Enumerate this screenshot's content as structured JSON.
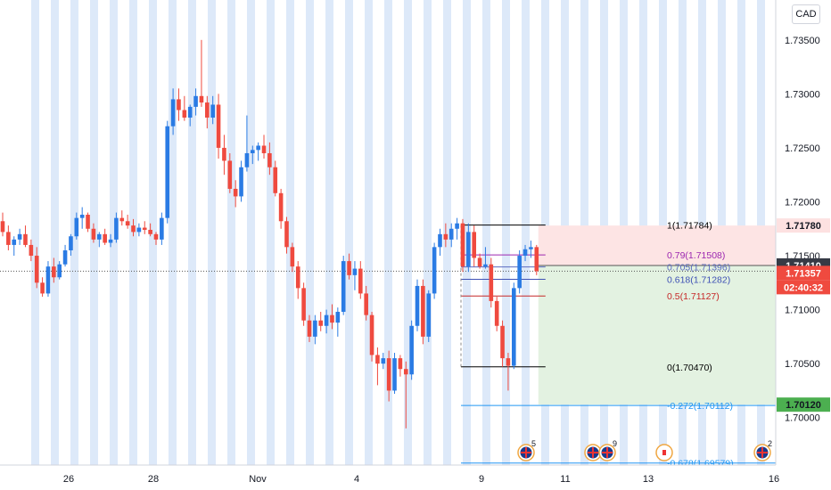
{
  "currency": "CAD",
  "colors": {
    "up": "#2a7be4",
    "down": "#ef4a3f",
    "session_band": "#dde9f9",
    "fib_1": "#000000",
    "fib_079": "#9c27b0",
    "fib_0705": "#5c6bc0",
    "fib_0618": "#3f51b5",
    "fib_05": "#c62828",
    "fib_0": "#000000",
    "fib_ext": "#2196f3",
    "stop_zone": "#fde4e4",
    "target_zone": "#e3f2e1",
    "tag_red": "#ef4a3f",
    "tag_green": "#4caf50",
    "tag_dark": "#363a45",
    "tag_pink": "#fde1e1"
  },
  "chart_data": {
    "type": "candlestick",
    "ylim": [
      1.6956,
      1.7387
    ],
    "y_ticks": [
      {
        "value": 1.7,
        "label": "1.70000"
      },
      {
        "value": 1.705,
        "label": "1.70500"
      },
      {
        "value": 1.71,
        "label": "1.71000"
      },
      {
        "value": 1.715,
        "label": "1.71500"
      },
      {
        "value": 1.72,
        "label": "1.72000"
      },
      {
        "value": 1.725,
        "label": "1.72500"
      },
      {
        "value": 1.73,
        "label": "1.73000"
      },
      {
        "value": 1.735,
        "label": "1.73500"
      }
    ],
    "x_ticks": [
      "26",
      "28",
      "Nov",
      "4",
      "9",
      "11",
      "13",
      "16"
    ],
    "candles": [
      [
        1.7182,
        1.719,
        1.7168,
        1.7172
      ],
      [
        1.7172,
        1.7178,
        1.7155,
        1.716
      ],
      [
        1.716,
        1.7168,
        1.715,
        1.7165
      ],
      [
        1.7165,
        1.7175,
        1.716,
        1.717
      ],
      [
        1.717,
        1.7178,
        1.7158,
        1.716
      ],
      [
        1.716,
        1.7165,
        1.7145,
        1.715
      ],
      [
        1.715,
        1.7158,
        1.712,
        1.7125
      ],
      [
        1.7125,
        1.713,
        1.7112,
        1.7115
      ],
      [
        1.7115,
        1.7145,
        1.7112,
        1.714
      ],
      [
        1.714,
        1.7148,
        1.7125,
        1.713
      ],
      [
        1.713,
        1.7145,
        1.7128,
        1.7142
      ],
      [
        1.7142,
        1.716,
        1.714,
        1.7155
      ],
      [
        1.7155,
        1.717,
        1.715,
        1.7168
      ],
      [
        1.7168,
        1.719,
        1.7165,
        1.7185
      ],
      [
        1.7185,
        1.7195,
        1.7175,
        1.7188
      ],
      [
        1.7188,
        1.719,
        1.7172,
        1.7175
      ],
      [
        1.7175,
        1.718,
        1.7162,
        1.7165
      ],
      [
        1.7165,
        1.7172,
        1.7158,
        1.717
      ],
      [
        1.717,
        1.7175,
        1.716,
        1.7162
      ],
      [
        1.7162,
        1.717,
        1.7158,
        1.7165
      ],
      [
        1.7165,
        1.719,
        1.7162,
        1.7185
      ],
      [
        1.7185,
        1.7192,
        1.7178,
        1.7182
      ],
      [
        1.7182,
        1.7188,
        1.7175,
        1.7178
      ],
      [
        1.7178,
        1.7184,
        1.7168,
        1.7172
      ],
      [
        1.7172,
        1.718,
        1.7168,
        1.7176
      ],
      [
        1.7176,
        1.7182,
        1.717,
        1.7174
      ],
      [
        1.7174,
        1.718,
        1.7168,
        1.717
      ],
      [
        1.717,
        1.7172,
        1.716,
        1.7165
      ],
      [
        1.7165,
        1.719,
        1.716,
        1.7185
      ],
      [
        1.7185,
        1.7275,
        1.718,
        1.727
      ],
      [
        1.727,
        1.7305,
        1.7262,
        1.7295
      ],
      [
        1.7295,
        1.7305,
        1.7275,
        1.7285
      ],
      [
        1.7285,
        1.7298,
        1.7275,
        1.7278
      ],
      [
        1.7278,
        1.729,
        1.727,
        1.7288
      ],
      [
        1.7288,
        1.7305,
        1.728,
        1.7298
      ],
      [
        1.7298,
        1.735,
        1.7288,
        1.7292
      ],
      [
        1.7292,
        1.7298,
        1.7268,
        1.7278
      ],
      [
        1.7278,
        1.7298,
        1.7272,
        1.729
      ],
      [
        1.729,
        1.73,
        1.724,
        1.725
      ],
      [
        1.725,
        1.7262,
        1.7225,
        1.7238
      ],
      [
        1.7238,
        1.7245,
        1.7208,
        1.7212
      ],
      [
        1.7212,
        1.722,
        1.7195,
        1.7205
      ],
      [
        1.7205,
        1.7238,
        1.72,
        1.7232
      ],
      [
        1.7232,
        1.728,
        1.7228,
        1.7245
      ],
      [
        1.7245,
        1.7252,
        1.7235,
        1.7248
      ],
      [
        1.7248,
        1.7255,
        1.7238,
        1.7252
      ],
      [
        1.7252,
        1.7262,
        1.724,
        1.7245
      ],
      [
        1.7245,
        1.7255,
        1.7225,
        1.7232
      ],
      [
        1.7232,
        1.7238,
        1.7205,
        1.7208
      ],
      [
        1.7208,
        1.7212,
        1.7175,
        1.7182
      ],
      [
        1.7182,
        1.7186,
        1.7152,
        1.7158
      ],
      [
        1.7158,
        1.7162,
        1.7135,
        1.714
      ],
      [
        1.714,
        1.7145,
        1.711,
        1.712
      ],
      [
        1.712,
        1.7125,
        1.7085,
        1.709
      ],
      [
        1.709,
        1.7095,
        1.707,
        1.7075
      ],
      [
        1.7075,
        1.7095,
        1.7068,
        1.709
      ],
      [
        1.709,
        1.7098,
        1.708,
        1.7085
      ],
      [
        1.7085,
        1.71,
        1.7078,
        1.7095
      ],
      [
        1.7095,
        1.7105,
        1.7082,
        1.7088
      ],
      [
        1.7088,
        1.7102,
        1.7075,
        1.7098
      ],
      [
        1.7098,
        1.715,
        1.7095,
        1.7145
      ],
      [
        1.7145,
        1.7152,
        1.7128,
        1.7132
      ],
      [
        1.7132,
        1.7145,
        1.7118,
        1.7138
      ],
      [
        1.7138,
        1.7145,
        1.711,
        1.7115
      ],
      [
        1.7115,
        1.7122,
        1.709,
        1.7095
      ],
      [
        1.7095,
        1.7098,
        1.7052,
        1.7058
      ],
      [
        1.7058,
        1.7065,
        1.703,
        1.705
      ],
      [
        1.705,
        1.706,
        1.7045,
        1.7055
      ],
      [
        1.7055,
        1.7062,
        1.7015,
        1.7025
      ],
      [
        1.7025,
        1.706,
        1.7022,
        1.7055
      ],
      [
        1.7055,
        1.7058,
        1.7038,
        1.7045
      ],
      [
        1.7045,
        1.7052,
        1.699,
        1.704
      ],
      [
        1.704,
        1.709,
        1.7035,
        1.7085
      ],
      [
        1.7085,
        1.7128,
        1.708,
        1.7122
      ],
      [
        1.7122,
        1.7128,
        1.7068,
        1.7075
      ],
      [
        1.7075,
        1.7118,
        1.707,
        1.7115
      ],
      [
        1.7115,
        1.7162,
        1.711,
        1.7158
      ],
      [
        1.7158,
        1.7175,
        1.715,
        1.717
      ],
      [
        1.717,
        1.718,
        1.7158,
        1.7165
      ],
      [
        1.7165,
        1.718,
        1.7158,
        1.7175
      ],
      [
        1.7175,
        1.7185,
        1.7165,
        1.718
      ],
      [
        1.718,
        1.7184,
        1.7135,
        1.714
      ],
      [
        1.714,
        1.718,
        1.7135,
        1.7172
      ],
      [
        1.7172,
        1.7178,
        1.714,
        1.7148
      ],
      [
        1.7148,
        1.7152,
        1.7138,
        1.714
      ],
      [
        1.714,
        1.7158,
        1.7138,
        1.7142
      ],
      [
        1.7142,
        1.7148,
        1.7102,
        1.7108
      ],
      [
        1.7108,
        1.7112,
        1.708,
        1.7085
      ],
      [
        1.7085,
        1.709,
        1.7047,
        1.7055
      ],
      [
        1.7055,
        1.706,
        1.7025,
        1.7048
      ],
      [
        1.7048,
        1.7125,
        1.7045,
        1.712
      ],
      [
        1.712,
        1.7155,
        1.7115,
        1.715
      ],
      [
        1.715,
        1.716,
        1.7145,
        1.7156
      ],
      [
        1.7156,
        1.7164,
        1.7148,
        1.7158
      ],
      [
        1.7158,
        1.716,
        1.7132,
        1.71357
      ]
    ],
    "fib_levels": [
      {
        "label": "1(1.71784)",
        "value": 1.71784,
        "color_key": "fib_1"
      },
      {
        "label": "0.79(1.71508)",
        "value": 1.71508,
        "color_key": "fib_079"
      },
      {
        "label": "0.705(1.71396)",
        "value": 1.71396,
        "color_key": "fib_0705"
      },
      {
        "label": "0.618(1.71282)",
        "value": 1.71282,
        "color_key": "fib_0618"
      },
      {
        "label": "0.5(1.71127)",
        "value": 1.71127,
        "color_key": "fib_05"
      },
      {
        "label": "0(1.70470)",
        "value": 1.7047,
        "color_key": "fib_0"
      },
      {
        "label": "-0.272(1.70112)",
        "value": 1.70112,
        "color_key": "fib_ext"
      },
      {
        "label": "-0.678(1.69579)",
        "value": 1.69579,
        "color_key": "fib_ext"
      }
    ],
    "position": {
      "stop": 1.7178,
      "entry": 1.7141,
      "target": 1.7012
    },
    "price_tags": [
      {
        "label": "1.71780",
        "value": 1.7178,
        "style": "pink"
      },
      {
        "label": "1.71410",
        "value": 1.7141,
        "style": "dark"
      },
      {
        "label": "1.71357",
        "value": 1.71357,
        "style": "red"
      },
      {
        "label": "02:40:32",
        "value": 1.71357,
        "style": "red",
        "offset": 1
      },
      {
        "label": "1.70120",
        "value": 1.7012,
        "style": "green"
      }
    ],
    "current_price": 1.71357,
    "events": [
      {
        "flag": "uk",
        "count": "5"
      },
      {
        "flag": "uk",
        "count": ""
      },
      {
        "flag": "uk",
        "count": "9"
      },
      {
        "flag": "ca",
        "count": ""
      },
      {
        "flag": "uk",
        "count": "2"
      }
    ]
  }
}
